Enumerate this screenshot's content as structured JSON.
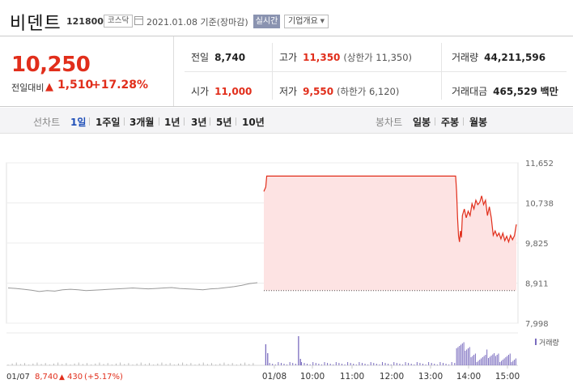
{
  "header": {
    "name": "비덴트",
    "code": "121800",
    "market": "코스닥",
    "date_text": "2021.01.08 기준(장마감)",
    "realtime_label": "실시간",
    "company_label": "기업개요"
  },
  "quote": {
    "price": "10,250",
    "change_label": "전일대비",
    "change_amount": "1,510",
    "change_pct": "+17.28%",
    "prev_close_label": "전일",
    "prev_close": "8,740",
    "high_label": "고가",
    "high": "11,350",
    "upper_limit": "(상한가 11,350)",
    "volume_label": "거래량",
    "volume": "44,211,596",
    "open_label": "시가",
    "open": "11,000",
    "low_label": "저가",
    "low": "9,550",
    "lower_limit": "(하한가 6,120)",
    "value_label": "거래대금",
    "value": "465,529",
    "value_unit": "백만"
  },
  "tabs": {
    "line_label": "선차트",
    "line_periods": [
      "1일",
      "1주일",
      "3개월",
      "1년",
      "3년",
      "5년",
      "10년"
    ],
    "active_period": "1일",
    "candle_label": "봉차트",
    "candle_periods": [
      "일봉",
      "주봉",
      "월봉"
    ]
  },
  "chart_data": {
    "type": "line",
    "y_ticks": [
      "11,652",
      "10,738",
      "9,825",
      "8,911",
      "7,998"
    ],
    "ylim": [
      7998,
      11652
    ],
    "x_ticks": [
      "01/08",
      "10:00",
      "11:00",
      "12:00",
      "13:00",
      "14:00",
      "15:00"
    ],
    "prev_day": {
      "date": "01/07",
      "close": "8,740",
      "change": "430",
      "change_pct": "(+5.17%)",
      "series": [
        8800,
        8790,
        8770,
        8750,
        8720,
        8740,
        8730,
        8760,
        8770,
        8760,
        8740,
        8750,
        8760,
        8770,
        8780,
        8790,
        8800,
        8790,
        8780,
        8790,
        8800,
        8810,
        8790,
        8780,
        8770,
        8760,
        8780,
        8790,
        8810,
        8830,
        8860,
        8900,
        8920
      ]
    },
    "today": {
      "series": [
        [
          0,
          11000
        ],
        [
          2,
          11100
        ],
        [
          3,
          11350
        ],
        [
          5,
          11350
        ],
        [
          100,
          11350
        ],
        [
          150,
          11350
        ],
        [
          199,
          11350
        ],
        [
          200,
          11000
        ],
        [
          201,
          10400
        ],
        [
          202,
          9990
        ],
        [
          203,
          9850
        ],
        [
          204,
          10100
        ],
        [
          205,
          9950
        ],
        [
          206,
          10450
        ],
        [
          208,
          10600
        ],
        [
          210,
          10400
        ],
        [
          212,
          10550
        ],
        [
          214,
          10450
        ],
        [
          216,
          10720
        ],
        [
          218,
          10600
        ],
        [
          220,
          10800
        ],
        [
          222,
          10700
        ],
        [
          224,
          10750
        ],
        [
          226,
          10900
        ],
        [
          228,
          10700
        ],
        [
          230,
          10800
        ],
        [
          232,
          10450
        ],
        [
          234,
          10650
        ],
        [
          236,
          10400
        ],
        [
          238,
          10000
        ],
        [
          240,
          10100
        ],
        [
          242,
          9980
        ],
        [
          244,
          10050
        ],
        [
          246,
          9920
        ],
        [
          248,
          10050
        ],
        [
          250,
          9880
        ],
        [
          252,
          9980
        ],
        [
          254,
          9850
        ],
        [
          256,
          10000
        ],
        [
          258,
          9900
        ],
        [
          260,
          9990
        ],
        [
          262,
          10250
        ]
      ],
      "prev_close": 8740
    },
    "volume_legend": "거래량",
    "colors": {
      "up": "#e12e1b",
      "fill": "#fde3e3",
      "prev": "#999999",
      "volume": "#7a6cbf"
    }
  }
}
